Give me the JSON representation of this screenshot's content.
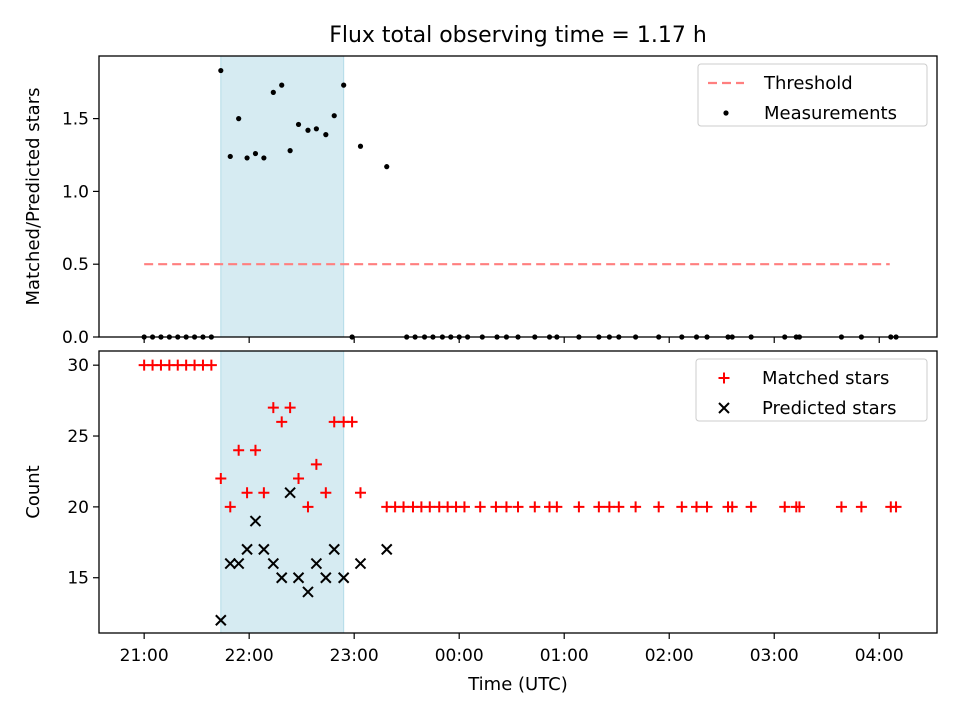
{
  "chart_data": {
    "type": "scatter",
    "title": "Flux total observing time = 1.17 h",
    "xlabel": "Time (UTC)",
    "x_unit": "hours (UTC, continuing past midnight)",
    "xlim": [
      20.57,
      28.55
    ],
    "xticks": [
      {
        "value": 21,
        "label": "21:00"
      },
      {
        "value": 22,
        "label": "22:00"
      },
      {
        "value": 23,
        "label": "23:00"
      },
      {
        "value": 24,
        "label": "00:00"
      },
      {
        "value": 25,
        "label": "01:00"
      },
      {
        "value": 26,
        "label": "02:00"
      },
      {
        "value": 27,
        "label": "03:00"
      },
      {
        "value": 28,
        "label": "04:00"
      }
    ],
    "shaded_span": {
      "start": 21.73,
      "end": 22.9,
      "color": "#add8e6"
    },
    "panels": [
      {
        "name": "ratio",
        "ylabel": "Matched/Predicted stars",
        "ylim": [
          0,
          1.93
        ],
        "yticks": [
          {
            "value": 0,
            "label": "0.0"
          },
          {
            "value": 0.5,
            "label": "0.5"
          },
          {
            "value": 1.0,
            "label": "1.0"
          },
          {
            "value": 1.5,
            "label": "1.5"
          }
        ],
        "legend_position": "top-right",
        "series": [
          {
            "name": "Threshold",
            "type": "line",
            "style": "dashed",
            "color": "#ff7f7f",
            "x": [
              21.0,
              28.1
            ],
            "y": [
              0.5,
              0.5
            ]
          },
          {
            "name": "Measurements",
            "type": "scatter",
            "marker": "dot",
            "color": "#000000",
            "x": [
              21.0,
              21.08,
              21.16,
              21.24,
              21.32,
              21.4,
              21.48,
              21.56,
              21.64,
              21.73,
              21.82,
              21.9,
              21.98,
              22.06,
              22.14,
              22.23,
              22.31,
              22.39,
              22.47,
              22.56,
              22.64,
              22.73,
              22.81,
              22.9,
              22.98,
              23.06,
              23.31,
              23.5,
              23.58,
              23.67,
              23.75,
              23.84,
              23.92,
              24.0,
              24.08,
              24.22,
              24.36,
              24.45,
              24.56,
              24.72,
              24.86,
              24.93,
              25.14,
              25.33,
              25.43,
              25.52,
              25.68,
              25.9,
              26.12,
              26.26,
              26.36,
              26.56,
              26.6,
              26.78,
              27.1,
              27.21,
              27.24,
              27.64,
              27.83,
              28.11,
              28.16
            ],
            "y": [
              0,
              0,
              0,
              0,
              0,
              0,
              0,
              0,
              0,
              1.83,
              1.24,
              1.5,
              1.23,
              1.26,
              1.23,
              1.68,
              1.73,
              1.28,
              1.46,
              1.42,
              1.43,
              1.39,
              1.52,
              1.73,
              0,
              1.31,
              1.17,
              0,
              0,
              0,
              0,
              0,
              0,
              0,
              0,
              0,
              0,
              0,
              0,
              0,
              0,
              0,
              0,
              0,
              0,
              0,
              0,
              0,
              0,
              0,
              0,
              0,
              0,
              0,
              0,
              0,
              0,
              0,
              0,
              0,
              0
            ]
          }
        ]
      },
      {
        "name": "counts",
        "ylabel": "Count",
        "ylim": [
          11.1,
          31.0
        ],
        "yticks": [
          {
            "value": 15,
            "label": "15"
          },
          {
            "value": 20,
            "label": "20"
          },
          {
            "value": 25,
            "label": "25"
          },
          {
            "value": 30,
            "label": "30"
          }
        ],
        "legend_position": "top-right",
        "series": [
          {
            "name": "Matched stars",
            "type": "scatter",
            "marker": "plus",
            "color": "#ff0000",
            "x": [
              21.0,
              21.08,
              21.16,
              21.24,
              21.32,
              21.4,
              21.48,
              21.56,
              21.64,
              21.73,
              21.82,
              21.9,
              21.98,
              22.06,
              22.14,
              22.23,
              22.31,
              22.39,
              22.47,
              22.56,
              22.64,
              22.73,
              22.81,
              22.9,
              22.98,
              23.06,
              23.31,
              23.39,
              23.47,
              23.56,
              23.64,
              23.72,
              23.81,
              23.89,
              23.97,
              24.05,
              24.2,
              24.35,
              24.45,
              24.56,
              24.72,
              24.86,
              24.93,
              25.14,
              25.33,
              25.43,
              25.52,
              25.68,
              25.9,
              26.12,
              26.26,
              26.36,
              26.56,
              26.6,
              26.78,
              27.1,
              27.21,
              27.24,
              27.64,
              27.83,
              28.11,
              28.16
            ],
            "y": [
              30,
              30,
              30,
              30,
              30,
              30,
              30,
              30,
              30,
              22,
              20,
              24,
              21,
              24,
              21,
              27,
              26,
              27,
              22,
              20,
              23,
              21,
              26,
              26,
              26,
              21,
              20,
              20,
              20,
              20,
              20,
              20,
              20,
              20,
              20,
              20,
              20,
              20,
              20,
              20,
              20,
              20,
              20,
              20,
              20,
              20,
              20,
              20,
              20,
              20,
              20,
              20,
              20,
              20,
              20,
              20,
              20,
              20,
              20,
              20,
              20,
              20
            ]
          },
          {
            "name": "Predicted stars",
            "type": "scatter",
            "marker": "x",
            "color": "#000000",
            "x": [
              21.73,
              21.82,
              21.9,
              21.98,
              22.06,
              22.14,
              22.23,
              22.31,
              22.39,
              22.47,
              22.56,
              22.64,
              22.73,
              22.81,
              22.9,
              23.06,
              23.31
            ],
            "y": [
              12,
              16,
              16,
              17,
              19,
              17,
              16,
              15,
              21,
              15,
              14,
              16,
              15,
              17,
              15,
              16,
              17
            ]
          }
        ]
      }
    ]
  }
}
